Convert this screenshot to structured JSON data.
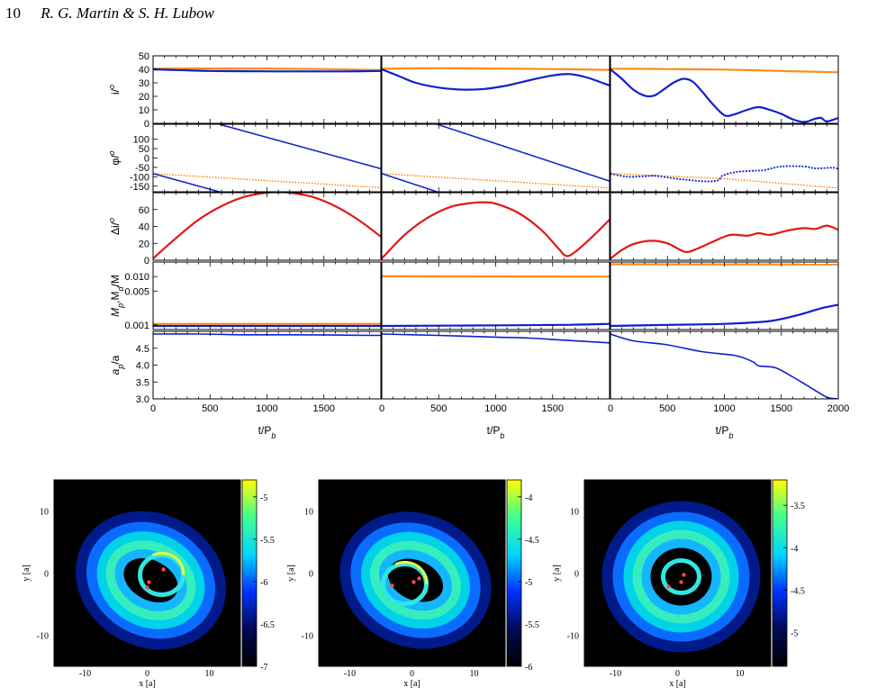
{
  "header": {
    "page_number": "10",
    "authors": "R. G. Martin & S. H. Lubow"
  },
  "colors": {
    "blue": "#1020cc",
    "orange": "#ff8c1a",
    "red": "#e01818",
    "marker": "#ff4a4a"
  },
  "chart_data": {
    "type": "line",
    "x_axis": {
      "label": "t/P_b",
      "range": [
        0,
        2000
      ],
      "tick_labels": [
        "0",
        "500",
        "1000",
        "1500"
      ],
      "last_column_extra_tick": "2000"
    },
    "rows": [
      {
        "ylabel": "i/o",
        "ylim": [
          0,
          50
        ],
        "tick_labels": [
          "0",
          "10",
          "20",
          "30",
          "40",
          "50"
        ]
      },
      {
        "ylabel": "phi/o",
        "ylim": [
          -180,
          180
        ],
        "tick_labels": [
          "-150",
          "-100",
          "-50",
          "0",
          "50",
          "100"
        ]
      },
      {
        "ylabel": "Delta i/o",
        "ylim": [
          0,
          80
        ],
        "tick_labels": [
          "0",
          "20",
          "40",
          "60"
        ]
      },
      {
        "ylabel": "M_p,M_d/M",
        "scale": "log",
        "ylim": [
          0.0008,
          0.02
        ],
        "tick_labels": [
          "0.001",
          "0.005",
          "0.010"
        ]
      },
      {
        "ylabel": "a_p/a",
        "ylim": [
          3.0,
          5.0
        ],
        "tick_labels": [
          "3.0",
          "3.5",
          "4.0",
          "4.5"
        ]
      }
    ],
    "columns": [
      {
        "incl_blue": [
          [
            0,
            40
          ],
          [
            200,
            39.5
          ],
          [
            500,
            38.8
          ],
          [
            800,
            38.6
          ],
          [
            1100,
            38.5
          ],
          [
            1400,
            38.5
          ],
          [
            1700,
            38.5
          ],
          [
            2000,
            38.8
          ]
        ],
        "incl_orange": [
          [
            0,
            40.5
          ],
          [
            500,
            40.6
          ],
          [
            1000,
            40.6
          ],
          [
            1500,
            40.2
          ],
          [
            2000,
            39.5
          ]
        ],
        "phase_blue_rate": -0.167,
        "phase_blue_start": -83,
        "phase_orange": [
          [
            0,
            -83
          ],
          [
            2000,
            -158
          ]
        ],
        "delta_i": [
          [
            0,
            2
          ],
          [
            200,
            26
          ],
          [
            400,
            48
          ],
          [
            600,
            64
          ],
          [
            800,
            75
          ],
          [
            1000,
            80
          ],
          [
            1100,
            80.5
          ],
          [
            1200,
            80
          ],
          [
            1400,
            75
          ],
          [
            1600,
            64
          ],
          [
            1800,
            48
          ],
          [
            2000,
            28
          ]
        ],
        "mass_blue": [
          [
            0,
            0.00095
          ],
          [
            2000,
            0.00095
          ]
        ],
        "mass_orange": [
          [
            0,
            0.00105
          ],
          [
            2000,
            0.00105
          ]
        ],
        "semi_major": [
          [
            0,
            4.92
          ],
          [
            400,
            4.92
          ],
          [
            800,
            4.9
          ],
          [
            1200,
            4.9
          ],
          [
            1600,
            4.89
          ],
          [
            2000,
            4.88
          ]
        ]
      },
      {
        "incl_blue": [
          [
            0,
            40
          ],
          [
            150,
            35
          ],
          [
            300,
            30
          ],
          [
            500,
            26.5
          ],
          [
            700,
            25
          ],
          [
            900,
            25.5
          ],
          [
            1100,
            28
          ],
          [
            1300,
            32
          ],
          [
            1500,
            35.5
          ],
          [
            1650,
            36.5
          ],
          [
            1800,
            34
          ],
          [
            2000,
            28
          ]
        ],
        "incl_orange": [
          [
            0,
            40.5
          ],
          [
            500,
            40.8
          ],
          [
            1000,
            40.6
          ],
          [
            1500,
            40.2
          ],
          [
            2000,
            39.6
          ]
        ],
        "phase_blue_rate": -0.2,
        "phase_blue_start": -83,
        "phase_orange": [
          [
            0,
            -83
          ],
          [
            2000,
            -160
          ]
        ],
        "delta_i": [
          [
            0,
            2
          ],
          [
            200,
            30
          ],
          [
            400,
            50
          ],
          [
            600,
            63
          ],
          [
            800,
            68
          ],
          [
            900,
            68.5
          ],
          [
            1000,
            67
          ],
          [
            1200,
            56
          ],
          [
            1400,
            36
          ],
          [
            1550,
            14
          ],
          [
            1620,
            5
          ],
          [
            1700,
            10
          ],
          [
            1850,
            28
          ],
          [
            2000,
            48
          ]
        ],
        "mass_blue": [
          [
            0,
            0.00095
          ],
          [
            800,
            0.00097
          ],
          [
            1600,
            0.001
          ],
          [
            2000,
            0.00105
          ]
        ],
        "mass_orange": [
          [
            0,
            0.0101
          ],
          [
            2000,
            0.01
          ]
        ],
        "semi_major": [
          [
            0,
            4.92
          ],
          [
            500,
            4.88
          ],
          [
            1000,
            4.83
          ],
          [
            1300,
            4.8
          ],
          [
            1600,
            4.74
          ],
          [
            2000,
            4.66
          ]
        ]
      },
      {
        "incl_blue": [
          [
            0,
            40
          ],
          [
            100,
            33
          ],
          [
            200,
            25
          ],
          [
            300,
            20.5
          ],
          [
            380,
            20.5
          ],
          [
            450,
            24
          ],
          [
            550,
            30
          ],
          [
            640,
            33
          ],
          [
            720,
            31
          ],
          [
            800,
            24
          ],
          [
            900,
            14
          ],
          [
            1000,
            6
          ],
          [
            1080,
            6.5
          ],
          [
            1200,
            10
          ],
          [
            1300,
            12
          ],
          [
            1400,
            10
          ],
          [
            1500,
            7
          ],
          [
            1600,
            3
          ],
          [
            1700,
            1
          ],
          [
            1800,
            3.5
          ],
          [
            1850,
            4
          ],
          [
            1900,
            1.5
          ],
          [
            2000,
            4
          ]
        ],
        "incl_orange": [
          [
            0,
            40.5
          ],
          [
            500,
            40.2
          ],
          [
            1000,
            39.8
          ],
          [
            1500,
            38.8
          ],
          [
            2000,
            37.8
          ]
        ],
        "phase_blue": [
          [
            0,
            -83
          ],
          [
            150,
            -100
          ],
          [
            300,
            -97
          ],
          [
            400,
            -95
          ],
          [
            550,
            -108
          ],
          [
            700,
            -118
          ],
          [
            850,
            -125
          ],
          [
            950,
            -118
          ],
          [
            980,
            -95
          ],
          [
            1100,
            -75
          ],
          [
            1250,
            -68
          ],
          [
            1350,
            -65
          ],
          [
            1500,
            -45
          ],
          [
            1700,
            -45
          ],
          [
            1800,
            -55
          ],
          [
            1950,
            -52
          ],
          [
            2000,
            -58
          ]
        ],
        "phase_orange": [
          [
            0,
            -83
          ],
          [
            1000,
            -110
          ],
          [
            2000,
            -160
          ]
        ],
        "delta_i": [
          [
            0,
            2
          ],
          [
            100,
            12
          ],
          [
            200,
            19
          ],
          [
            350,
            23
          ],
          [
            500,
            20
          ],
          [
            650,
            10
          ],
          [
            750,
            13
          ],
          [
            900,
            22
          ],
          [
            1050,
            30
          ],
          [
            1200,
            29
          ],
          [
            1300,
            32
          ],
          [
            1400,
            30
          ],
          [
            1550,
            35
          ],
          [
            1700,
            38
          ],
          [
            1800,
            37
          ],
          [
            1900,
            41
          ],
          [
            2000,
            36
          ]
        ],
        "mass_blue": [
          [
            0,
            0.00095
          ],
          [
            500,
            0.001
          ],
          [
            1000,
            0.00105
          ],
          [
            1400,
            0.0012
          ],
          [
            1650,
            0.0016
          ],
          [
            1850,
            0.0022
          ],
          [
            2000,
            0.0026
          ]
        ],
        "mass_orange": [
          [
            0,
            0.018
          ],
          [
            2000,
            0.0178
          ]
        ],
        "semi_major": [
          [
            0,
            4.92
          ],
          [
            200,
            4.72
          ],
          [
            500,
            4.6
          ],
          [
            800,
            4.4
          ],
          [
            1100,
            4.28
          ],
          [
            1250,
            4.1
          ],
          [
            1300,
            3.98
          ],
          [
            1450,
            3.92
          ],
          [
            1600,
            3.65
          ],
          [
            1750,
            3.35
          ],
          [
            1900,
            3.05
          ],
          [
            2000,
            3.0
          ]
        ]
      }
    ]
  },
  "density_maps": [
    {
      "xlabel": "x [a]",
      "ylabel": "y [a]",
      "x_ticks": [
        "-10",
        "0",
        "10"
      ],
      "y_ticks": [
        "10",
        "0",
        "-10"
      ],
      "colorbar_ticks": [
        "-5",
        "-5.5",
        "-6",
        "-6.5",
        "-7"
      ],
      "colorbar_range": [
        -4.8,
        -7.0
      ],
      "tilt_deg": 28
    },
    {
      "xlabel": "x [a]",
      "ylabel": "y [a]",
      "x_ticks": [
        "-10",
        "0",
        "10"
      ],
      "y_ticks": [
        "10",
        "0",
        "-10"
      ],
      "colorbar_ticks": [
        "-4",
        "-4.5",
        "-5",
        "-5.5",
        "-6"
      ],
      "colorbar_range": [
        -3.8,
        -6.0
      ],
      "tilt_deg": 24
    },
    {
      "xlabel": "x [a]",
      "ylabel": "y [a]",
      "x_ticks": [
        "-10",
        "0",
        "10"
      ],
      "y_ticks": [
        "10",
        "0",
        "-10"
      ],
      "colorbar_ticks": [
        "-3.5",
        "-4",
        "-4.5",
        "-5"
      ],
      "colorbar_range": [
        -3.2,
        -5.4
      ],
      "tilt_deg": 0
    }
  ]
}
